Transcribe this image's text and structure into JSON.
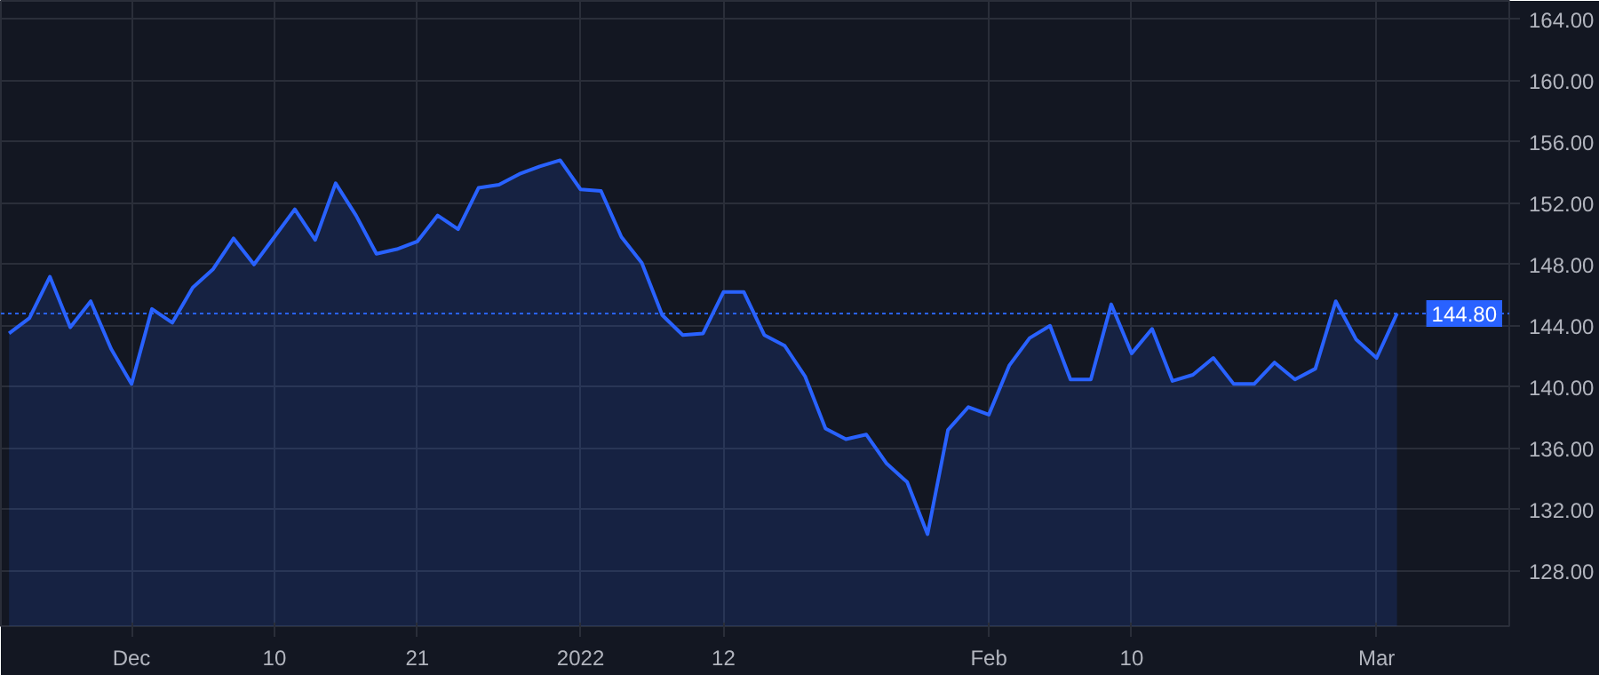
{
  "chart_data": {
    "type": "area",
    "series": [
      {
        "color": "#2962ff",
        "values": [
          143.5,
          144.5,
          147.2,
          143.9,
          145.6,
          142.5,
          140.2,
          145.1,
          144.2,
          146.5,
          147.7,
          149.7,
          148.0,
          149.8,
          151.6,
          149.6,
          153.3,
          151.2,
          148.7,
          149.0,
          149.5,
          151.2,
          150.3,
          153.0,
          153.2,
          153.9,
          154.4,
          154.8,
          152.9,
          152.8,
          149.8,
          148.1,
          144.7,
          143.4,
          143.5,
          146.2,
          146.2,
          143.4,
          142.7,
          140.7,
          137.3,
          136.6,
          136.9,
          135.0,
          133.8,
          130.4,
          137.2,
          138.7,
          138.2,
          141.4,
          143.2,
          144.0,
          140.5,
          140.5,
          145.4,
          142.2,
          143.8,
          140.4,
          140.8,
          141.9,
          140.2,
          140.2,
          141.6,
          140.5,
          141.2,
          145.6,
          143.1,
          141.9,
          144.8
        ]
      }
    ],
    "categories": [
      null,
      null,
      null,
      null,
      null,
      null,
      "Dec",
      null,
      null,
      null,
      null,
      null,
      null,
      "10",
      null,
      null,
      null,
      null,
      null,
      null,
      "21",
      null,
      null,
      null,
      null,
      null,
      null,
      null,
      "2022",
      null,
      null,
      null,
      null,
      null,
      null,
      "12",
      null,
      null,
      null,
      null,
      null,
      null,
      null,
      null,
      null,
      null,
      null,
      null,
      "Feb",
      null,
      null,
      null,
      null,
      null,
      null,
      "10",
      null,
      null,
      null,
      null,
      null,
      null,
      null,
      null,
      null,
      null,
      null,
      "Mar",
      null
    ],
    "ylim": [
      124.4,
      165.2
    ],
    "yticks": [
      {
        "value": 128,
        "label": "128.00"
      },
      {
        "value": 132,
        "label": "132.00"
      },
      {
        "value": 136,
        "label": "136.00"
      },
      {
        "value": 140,
        "label": "140.00"
      },
      {
        "value": 144,
        "label": "144.00"
      },
      {
        "value": 148,
        "label": "148.00"
      },
      {
        "value": 152,
        "label": "152.00"
      },
      {
        "value": 156,
        "label": "156.00"
      },
      {
        "value": 160,
        "label": "160.00"
      },
      {
        "value": 164,
        "label": "164.00"
      }
    ],
    "ref_lines": [
      {
        "axis": "y",
        "value": 144.8,
        "label": "144.80",
        "color": "#2962ff",
        "line_style": "dotted"
      }
    ],
    "grid": true
  }
}
